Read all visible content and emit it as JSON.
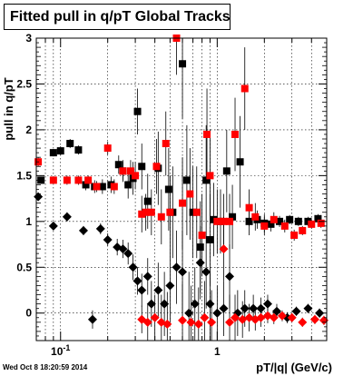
{
  "chart_data": {
    "type": "scatter",
    "title": "Fitted pull in q/pT  Global Tracks",
    "xlabel": "pT/|q| (GeV/c)",
    "ylabel": "pull in q/pT",
    "x_scale": "log",
    "xlim": [
      0.07,
      5.0
    ],
    "ylim": [
      -0.3,
      3.0
    ],
    "x_tick_labels": [
      "10^-1",
      "1"
    ],
    "y_ticks": [
      0,
      0.5,
      1,
      1.5,
      2,
      2.5,
      3
    ],
    "grid": true,
    "legend": "none",
    "series": [
      {
        "color": "#000000",
        "marker": "square",
        "points": [
          {
            "x": 0.075,
            "y": 1.45,
            "err": 0.03
          },
          {
            "x": 0.09,
            "y": 1.75,
            "err": 0.04
          },
          {
            "x": 0.1,
            "y": 1.77,
            "err": 0.05
          },
          {
            "x": 0.115,
            "y": 1.85,
            "err": 0.05
          },
          {
            "x": 0.13,
            "y": 1.78,
            "err": 0.05
          },
          {
            "x": 0.145,
            "y": 1.4,
            "err": 0.06
          },
          {
            "x": 0.165,
            "y": 1.38,
            "err": 0.07
          },
          {
            "x": 0.185,
            "y": 1.38,
            "err": 0.08
          },
          {
            "x": 0.21,
            "y": 1.4,
            "err": 0.09
          },
          {
            "x": 0.235,
            "y": 1.62,
            "err": 0.1
          },
          {
            "x": 0.25,
            "y": 1.55,
            "err": 0.12
          },
          {
            "x": 0.27,
            "y": 1.4,
            "err": 0.15
          },
          {
            "x": 0.29,
            "y": 1.47,
            "err": 0.18
          },
          {
            "x": 0.31,
            "y": 2.2,
            "err": 0.25
          },
          {
            "x": 0.33,
            "y": 1.6,
            "err": 0.25
          },
          {
            "x": 0.36,
            "y": 1.22,
            "err": 0.3
          },
          {
            "x": 0.42,
            "y": 1.58,
            "err": 0.4
          },
          {
            "x": 0.49,
            "y": 1.35,
            "err": 0.45
          },
          {
            "x": 0.52,
            "y": 1.1,
            "err": 0.5
          },
          {
            "x": 0.6,
            "y": 2.72,
            "err": 0.6
          },
          {
            "x": 0.64,
            "y": 1.45,
            "err": 0.6
          },
          {
            "x": 0.7,
            "y": 1.1,
            "err": 0.5
          },
          {
            "x": 0.78,
            "y": 0.72,
            "err": 0.5
          },
          {
            "x": 0.85,
            "y": 1.45,
            "err": 0.6
          },
          {
            "x": 0.9,
            "y": 0.8,
            "err": 0.5
          },
          {
            "x": 0.95,
            "y": 1.02,
            "err": 0.4
          },
          {
            "x": 1.05,
            "y": 1.0,
            "err": 0.35
          },
          {
            "x": 1.15,
            "y": 1.55,
            "err": 0.45
          },
          {
            "x": 1.25,
            "y": 1.05,
            "err": 0.35
          },
          {
            "x": 1.4,
            "y": 1.65,
            "err": 0.5
          },
          {
            "x": 1.6,
            "y": 1.0,
            "err": 0.15
          },
          {
            "x": 1.8,
            "y": 1.02,
            "err": 0.1
          },
          {
            "x": 2.0,
            "y": 0.98,
            "err": 0.1
          },
          {
            "x": 2.2,
            "y": 0.97,
            "err": 0.08
          },
          {
            "x": 2.5,
            "y": 1.0,
            "err": 0.06
          },
          {
            "x": 2.9,
            "y": 1.02,
            "err": 0.05
          },
          {
            "x": 3.3,
            "y": 1.0,
            "err": 0.05
          },
          {
            "x": 3.8,
            "y": 1.0,
            "err": 0.05
          },
          {
            "x": 4.4,
            "y": 1.03,
            "err": 0.05
          }
        ]
      },
      {
        "color": "#ff0000",
        "marker": "square",
        "points": [
          {
            "x": 0.072,
            "y": 1.65,
            "err": 0.05
          },
          {
            "x": 0.09,
            "y": 1.45,
            "err": 0.04
          },
          {
            "x": 0.11,
            "y": 1.45,
            "err": 0.05
          },
          {
            "x": 0.13,
            "y": 1.45,
            "err": 0.05
          },
          {
            "x": 0.15,
            "y": 1.45,
            "err": 0.05
          },
          {
            "x": 0.17,
            "y": 1.38,
            "err": 0.06
          },
          {
            "x": 0.2,
            "y": 1.8,
            "err": 0.07
          },
          {
            "x": 0.22,
            "y": 1.38,
            "err": 0.08
          },
          {
            "x": 0.25,
            "y": 1.55,
            "err": 0.1
          },
          {
            "x": 0.28,
            "y": 1.55,
            "err": 0.12
          },
          {
            "x": 0.3,
            "y": 1.5,
            "err": 0.15
          },
          {
            "x": 0.33,
            "y": 1.08,
            "err": 0.2
          },
          {
            "x": 0.35,
            "y": 1.1,
            "err": 0.2
          },
          {
            "x": 0.38,
            "y": 1.1,
            "err": 0.25
          },
          {
            "x": 0.41,
            "y": 1.6,
            "err": 0.3
          },
          {
            "x": 0.44,
            "y": 1.05,
            "err": 0.3
          },
          {
            "x": 0.47,
            "y": 1.85,
            "err": 0.35
          },
          {
            "x": 0.5,
            "y": 1.1,
            "err": 0.4
          },
          {
            "x": 0.55,
            "y": 3.0,
            "err": 0.4
          },
          {
            "x": 0.6,
            "y": 1.2,
            "err": 0.5
          },
          {
            "x": 0.67,
            "y": 1.3,
            "err": 0.5
          },
          {
            "x": 0.74,
            "y": 1.1,
            "err": 0.5
          },
          {
            "x": 0.8,
            "y": 0.85,
            "err": 0.45
          },
          {
            "x": 0.86,
            "y": 1.95,
            "err": 0.5
          },
          {
            "x": 0.9,
            "y": 1.5,
            "err": 0.5
          },
          {
            "x": 1.0,
            "y": 1.0,
            "err": 0.35
          },
          {
            "x": 1.1,
            "y": 1.0,
            "err": 0.3
          },
          {
            "x": 1.2,
            "y": 1.0,
            "err": 0.3
          },
          {
            "x": 1.3,
            "y": 1.95,
            "err": 0.4
          },
          {
            "x": 1.5,
            "y": 2.45,
            "err": 0.45
          },
          {
            "x": 1.6,
            "y": 1.15,
            "err": 0.2
          },
          {
            "x": 1.75,
            "y": 1.05,
            "err": 0.15
          },
          {
            "x": 2.0,
            "y": 0.95,
            "err": 0.1
          },
          {
            "x": 2.3,
            "y": 1.02,
            "err": 0.08
          },
          {
            "x": 2.7,
            "y": 0.95,
            "err": 0.07
          },
          {
            "x": 3.1,
            "y": 0.85,
            "err": 0.06
          },
          {
            "x": 3.5,
            "y": 0.9,
            "err": 0.05
          },
          {
            "x": 4.0,
            "y": 0.97,
            "err": 0.05
          },
          {
            "x": 4.6,
            "y": 0.98,
            "err": 0.05
          }
        ]
      },
      {
        "color": "#000000",
        "marker": "diamond",
        "points": [
          {
            "x": 0.072,
            "y": 1.27,
            "err": 0.04
          },
          {
            "x": 0.09,
            "y": 0.95,
            "err": 0.04
          },
          {
            "x": 0.11,
            "y": 1.05,
            "err": 0.05
          },
          {
            "x": 0.14,
            "y": 0.9,
            "err": 0.05
          },
          {
            "x": 0.16,
            "y": -0.07,
            "err": 0.1
          },
          {
            "x": 0.18,
            "y": 0.92,
            "err": 0.06
          },
          {
            "x": 0.2,
            "y": 0.8,
            "err": 0.07
          },
          {
            "x": 0.23,
            "y": 0.72,
            "err": 0.09
          },
          {
            "x": 0.25,
            "y": 0.7,
            "err": 0.1
          },
          {
            "x": 0.27,
            "y": 0.65,
            "err": 0.12
          },
          {
            "x": 0.29,
            "y": 0.5,
            "err": 0.14
          },
          {
            "x": 0.31,
            "y": 0.35,
            "err": 0.15
          },
          {
            "x": 0.33,
            "y": 0.25,
            "err": 0.18
          },
          {
            "x": 0.36,
            "y": 0.4,
            "err": 0.2
          },
          {
            "x": 0.38,
            "y": 0.1,
            "err": 0.25
          },
          {
            "x": 0.42,
            "y": 0.25,
            "err": 0.3
          },
          {
            "x": 0.46,
            "y": 0.1,
            "err": 0.35
          },
          {
            "x": 0.5,
            "y": 0.3,
            "err": 0.4
          },
          {
            "x": 0.55,
            "y": 0.5,
            "err": 0.4
          },
          {
            "x": 0.6,
            "y": 0.45,
            "err": 0.45
          },
          {
            "x": 0.66,
            "y": 0.0,
            "err": 0.45
          },
          {
            "x": 0.72,
            "y": 0.1,
            "err": 0.4
          },
          {
            "x": 0.78,
            "y": 0.55,
            "err": 0.4
          },
          {
            "x": 0.85,
            "y": 0.45,
            "err": 0.4
          },
          {
            "x": 0.9,
            "y": 0.1,
            "err": 0.35
          },
          {
            "x": 1.0,
            "y": 0.0,
            "err": 0.3
          },
          {
            "x": 1.1,
            "y": 0.05,
            "err": 0.3
          },
          {
            "x": 1.2,
            "y": 0.4,
            "err": 0.35
          },
          {
            "x": 1.35,
            "y": 0.0,
            "err": 0.25
          },
          {
            "x": 1.5,
            "y": 0.05,
            "err": 0.2
          },
          {
            "x": 1.7,
            "y": 0.05,
            "err": 0.15
          },
          {
            "x": 1.9,
            "y": 0.05,
            "err": 0.12
          },
          {
            "x": 2.1,
            "y": 0.1,
            "err": 0.1
          },
          {
            "x": 2.4,
            "y": 0.02,
            "err": 0.08
          },
          {
            "x": 2.8,
            "y": -0.05,
            "err": 0.06
          },
          {
            "x": 3.2,
            "y": 0.02,
            "err": 0.05
          },
          {
            "x": 3.8,
            "y": 0.05,
            "err": 0.05
          },
          {
            "x": 4.5,
            "y": 0.0,
            "err": 0.05
          }
        ]
      },
      {
        "color": "#ff0000",
        "marker": "diamond",
        "points": [
          {
            "x": 0.33,
            "y": -0.07,
            "err": 0.15
          },
          {
            "x": 0.36,
            "y": -0.1,
            "err": 0.2
          },
          {
            "x": 0.4,
            "y": -0.05,
            "err": 0.25
          },
          {
            "x": 0.44,
            "y": -0.1,
            "err": 0.3
          },
          {
            "x": 0.48,
            "y": -0.12,
            "err": 0.35
          },
          {
            "x": 0.6,
            "y": -0.08,
            "err": 0.4
          },
          {
            "x": 0.68,
            "y": -0.1,
            "err": 0.4
          },
          {
            "x": 0.76,
            "y": -0.12,
            "err": 0.4
          },
          {
            "x": 0.83,
            "y": -0.05,
            "err": 0.4
          },
          {
            "x": 0.92,
            "y": -0.1,
            "err": 0.35
          },
          {
            "x": 1.1,
            "y": 0.7,
            "err": 0.35
          },
          {
            "x": 1.2,
            "y": -0.1,
            "err": 0.3
          },
          {
            "x": 1.3,
            "y": -0.05,
            "err": 0.25
          },
          {
            "x": 1.45,
            "y": -0.07,
            "err": 0.2
          },
          {
            "x": 1.6,
            "y": -0.05,
            "err": 0.15
          },
          {
            "x": 1.75,
            "y": -0.07,
            "err": 0.12
          },
          {
            "x": 1.9,
            "y": -0.05,
            "err": 0.1
          },
          {
            "x": 2.1,
            "y": -0.03,
            "err": 0.08
          },
          {
            "x": 2.3,
            "y": -0.05,
            "err": 0.07
          },
          {
            "x": 2.6,
            "y": -0.03,
            "err": 0.06
          },
          {
            "x": 3.0,
            "y": -0.05,
            "err": 0.05
          },
          {
            "x": 3.5,
            "y": -0.1,
            "err": 0.05
          },
          {
            "x": 4.2,
            "y": -0.07,
            "err": 0.05
          },
          {
            "x": 4.8,
            "y": -0.08,
            "err": 0.05
          }
        ]
      }
    ]
  },
  "footer": {
    "timestamp": "Wed Oct  8 18:20:59 2014"
  }
}
